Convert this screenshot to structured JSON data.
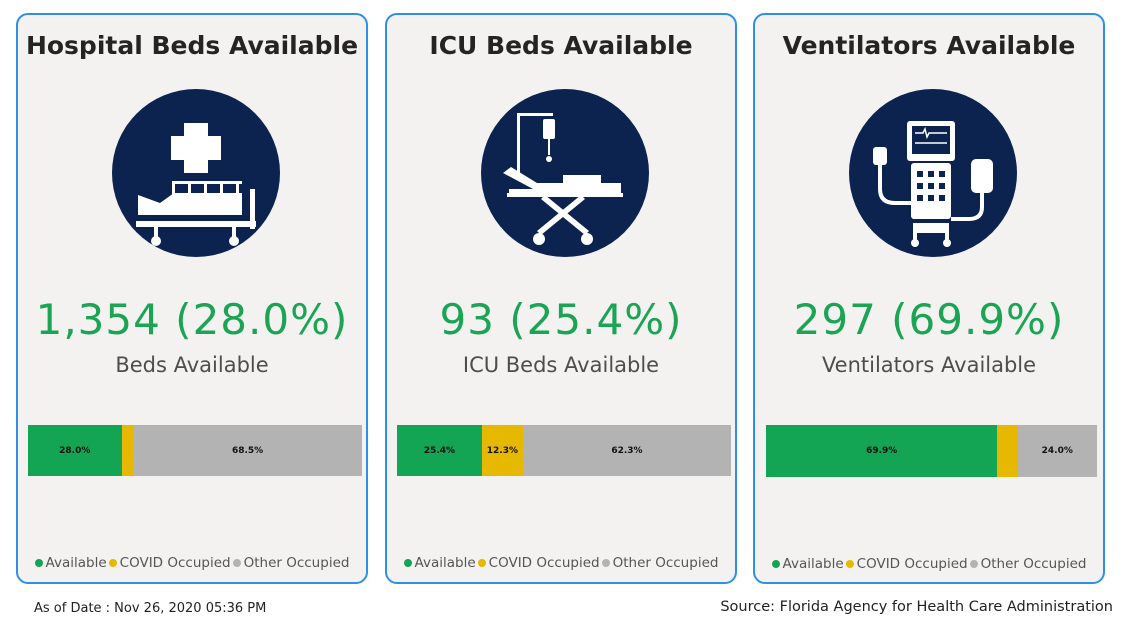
{
  "cards": [
    {
      "title": "Hospital Beds Available",
      "icon": "hospital-bed-icon",
      "big_value": "1,354 (28.0%)",
      "sub_label": "Beds Available"
    },
    {
      "title": "ICU Beds Available",
      "icon": "icu-bed-icon",
      "big_value": "93 (25.4%)",
      "sub_label": "ICU Beds Available"
    },
    {
      "title": "Ventilators Available",
      "icon": "ventilator-icon",
      "big_value": "297 (69.9%)",
      "sub_label": "Ventilators Available"
    }
  ],
  "legend": [
    "Available",
    "COVID Occupied",
    "Other Occupied"
  ],
  "colors": {
    "available": "#13a454",
    "covid_occupied": "#e6b800",
    "other_occupied": "#b3b3b3",
    "value_text": "#1aa454",
    "icon_bg": "#0c2350",
    "card_border": "#2f8ee6"
  },
  "chart_data": [
    {
      "type": "bar",
      "orientation": "horizontal-stacked-100",
      "series": [
        {
          "name": "Available",
          "values": [
            28.0
          ],
          "label": "28.0%"
        },
        {
          "name": "COVID Occupied",
          "values": [
            3.5
          ],
          "label": ""
        },
        {
          "name": "Other Occupied",
          "values": [
            68.5
          ],
          "label": "68.5%"
        }
      ]
    },
    {
      "type": "bar",
      "orientation": "horizontal-stacked-100",
      "series": [
        {
          "name": "Available",
          "values": [
            25.4
          ],
          "label": "25.4%"
        },
        {
          "name": "COVID Occupied",
          "values": [
            12.3
          ],
          "label": "12.3%"
        },
        {
          "name": "Other Occupied",
          "values": [
            62.3
          ],
          "label": "62.3%"
        }
      ]
    },
    {
      "type": "bar",
      "orientation": "horizontal-stacked-100",
      "series": [
        {
          "name": "Available",
          "values": [
            69.9
          ],
          "label": "69.9%"
        },
        {
          "name": "COVID Occupied",
          "values": [
            6.1
          ],
          "label": ""
        },
        {
          "name": "Other Occupied",
          "values": [
            24.0
          ],
          "label": "24.0%"
        }
      ]
    }
  ],
  "footer": {
    "as_of": "As of Date : Nov 26, 2020 05:36 PM",
    "source": "Source: Florida Agency for Health Care Administration"
  }
}
